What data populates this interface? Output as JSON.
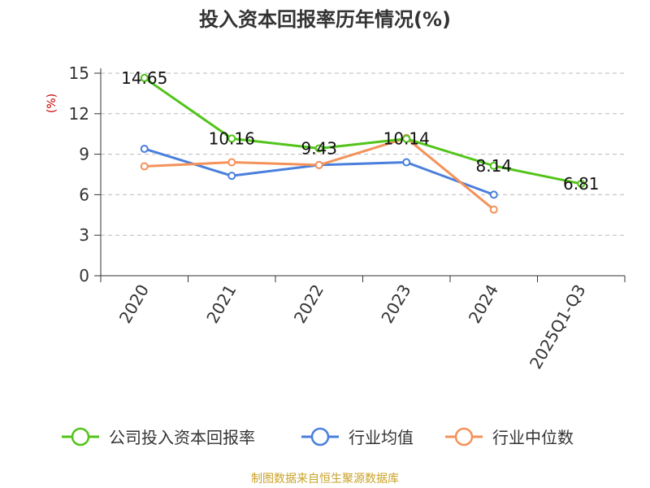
{
  "chart_data": {
    "type": "line",
    "title": "投入资本回报率历年情况(%)",
    "ylabel": "(%)",
    "xlabel": "",
    "categories": [
      "2020",
      "2021",
      "2022",
      "2023",
      "2024",
      "2025Q1-Q3"
    ],
    "ylim": [
      0,
      15
    ],
    "yticks": [
      0,
      3,
      6,
      9,
      12,
      15
    ],
    "grid": true,
    "legend_position": "bottom",
    "series": [
      {
        "name": "公司投入资本回报率",
        "color": "#52c41a",
        "values": [
          14.65,
          10.16,
          9.43,
          10.14,
          8.14,
          6.81
        ],
        "labels": [
          "14.65",
          "10.16",
          "9.43",
          "10.14",
          "8.14",
          "6.81"
        ]
      },
      {
        "name": "行业均值",
        "color": "#4a7fdc",
        "values": [
          9.4,
          7.4,
          8.2,
          8.4,
          6.0,
          null
        ]
      },
      {
        "name": "行业中位数",
        "color": "#f4925a",
        "values": [
          8.1,
          8.4,
          8.2,
          10.2,
          4.9,
          null
        ]
      }
    ]
  },
  "source": "制图数据来自恒生聚源数据库"
}
